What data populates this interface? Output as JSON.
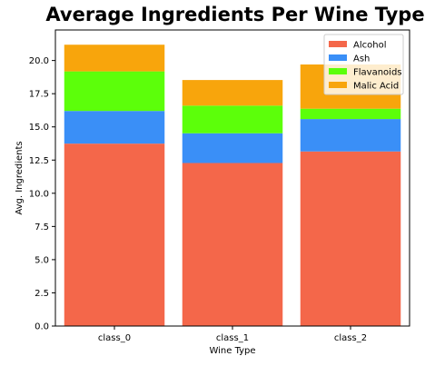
{
  "chart_data": {
    "type": "bar",
    "stacked": true,
    "title": "Average Ingredients Per Wine Type",
    "xlabel": "Wine Type",
    "ylabel": "Avg. Ingredients",
    "categories": [
      "class_0",
      "class_1",
      "class_2"
    ],
    "ylim": [
      0,
      22.3
    ],
    "yticks": [
      0.0,
      2.5,
      5.0,
      7.5,
      10.0,
      12.5,
      15.0,
      17.5,
      20.0
    ],
    "ytick_labels": [
      "0.0",
      "2.5",
      "5.0",
      "7.5",
      "10.0",
      "12.5",
      "15.0",
      "17.5",
      "20.0"
    ],
    "legend_position": "top-right",
    "grid": false,
    "series": [
      {
        "name": "Alcohol",
        "color": "#f4674a",
        "values": [
          13.74,
          12.28,
          13.15
        ]
      },
      {
        "name": "Ash",
        "color": "#3a8ff7",
        "values": [
          2.46,
          2.24,
          2.44
        ]
      },
      {
        "name": "Flavanoids",
        "color": "#5cff0a",
        "values": [
          2.98,
          2.08,
          0.78
        ]
      },
      {
        "name": "Malic Acid",
        "color": "#f8a50c",
        "values": [
          2.01,
          1.93,
          3.33
        ]
      }
    ]
  }
}
